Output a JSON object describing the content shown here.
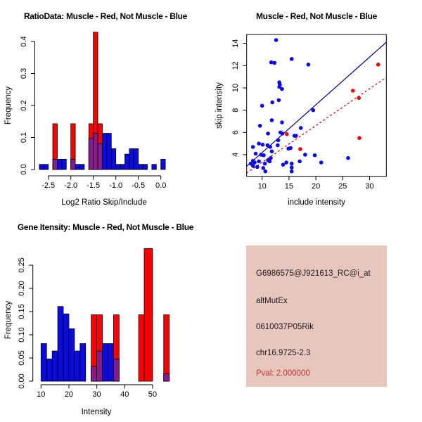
{
  "colors": {
    "hist_blue": "#0b0be0",
    "hist_red": "#fa0000",
    "overlap_purple": "#871b8c",
    "scatter_blue": "#0b0be0",
    "scatter_red": "#ee0000",
    "line_blue": "#00008b",
    "line_red": "#c00000",
    "axis_black": "#000000",
    "info_bg": "#e9c6bd",
    "info_text": "#1a1a1a",
    "pval_red": "#c43128"
  },
  "info_box": {
    "lines": [
      "G6986575@J921613_RC@i_at",
      "altMutEx",
      "0610037P05Rik",
      "chr16.9725-2.3"
    ],
    "pval": "Pval: 2.000000"
  },
  "chart_data": [
    {
      "type": "bar",
      "subtype": "overlaid-histogram",
      "title": "RatioData: Muscle - Red, Not Muscle - Blue",
      "xlabel": "Log2 Ratio Skip/Include",
      "ylabel": "Frequency",
      "xlim": [
        -2.7,
        0.2
      ],
      "ylim": [
        0,
        0.43
      ],
      "grid": false,
      "xticks": [
        -2.5,
        -2.0,
        -1.5,
        -1.0,
        -0.5,
        0.0
      ],
      "xtick_labels": [
        "-2.5",
        "-2.0",
        "-1.5",
        "-1.0",
        "-0.5",
        "0.0"
      ],
      "yticks": [
        0.0,
        0.1,
        0.2,
        0.3,
        0.4
      ],
      "ytick_labels": [
        "0.0",
        "0.1",
        "0.2",
        "0.3",
        "0.4"
      ],
      "bin_width": 0.1,
      "series": [
        {
          "name": "Not Muscle (blue)",
          "color_key": "hist_blue",
          "bars": [
            {
              "x": -2.7,
              "f": 0.016
            },
            {
              "x": -2.6,
              "f": 0.016
            },
            {
              "x": -2.4,
              "f": 0.032
            },
            {
              "x": -2.3,
              "f": 0.032
            },
            {
              "x": -2.2,
              "f": 0.032
            },
            {
              "x": -2.0,
              "f": 0.032
            },
            {
              "x": -1.9,
              "f": 0.016
            },
            {
              "x": -1.8,
              "f": 0.016
            },
            {
              "x": -1.6,
              "f": 0.097
            },
            {
              "x": -1.5,
              "f": 0.113
            },
            {
              "x": -1.4,
              "f": 0.081
            },
            {
              "x": -1.3,
              "f": 0.113
            },
            {
              "x": -1.2,
              "f": 0.113
            },
            {
              "x": -1.1,
              "f": 0.065
            },
            {
              "x": -1.0,
              "f": 0.016
            },
            {
              "x": -0.9,
              "f": 0.016
            },
            {
              "x": -0.8,
              "f": 0.048
            },
            {
              "x": -0.7,
              "f": 0.065
            },
            {
              "x": -0.6,
              "f": 0.065
            },
            {
              "x": -0.5,
              "f": 0.016
            },
            {
              "x": -0.4,
              "f": 0.016
            },
            {
              "x": -0.2,
              "f": 0.016
            },
            {
              "x": 0.0,
              "f": 0.032
            }
          ]
        },
        {
          "name": "Muscle (red)",
          "color_key": "hist_red",
          "bars": [
            {
              "x": -2.4,
              "f": 0.143
            },
            {
              "x": -2.0,
              "f": 0.143
            },
            {
              "x": -1.6,
              "f": 0.143
            },
            {
              "x": -1.5,
              "f": 0.429
            },
            {
              "x": -1.4,
              "f": 0.143
            }
          ]
        },
        {
          "name": "Overlap (purple)",
          "color_key": "overlap_purple",
          "bars": [
            {
              "x": -2.4,
              "f": 0.032
            },
            {
              "x": -2.0,
              "f": 0.032
            },
            {
              "x": -1.6,
              "f": 0.097
            },
            {
              "x": -1.5,
              "f": 0.113
            },
            {
              "x": -1.4,
              "f": 0.081
            }
          ]
        }
      ]
    },
    {
      "type": "scatter",
      "title": "Muscle - Red, Not Muscle - Blue",
      "xlabel": "include intensity",
      "ylabel": "skip intensity",
      "xlim": [
        7.1,
        33.1
      ],
      "ylim": [
        1.95,
        14.8
      ],
      "grid": false,
      "xticks": [
        10,
        15,
        20,
        25,
        30
      ],
      "xtick_labels": [
        "10",
        "15",
        "20",
        "25",
        "30"
      ],
      "yticks": [
        4,
        6,
        8,
        10,
        12,
        14
      ],
      "ytick_labels": [
        "4",
        "6",
        "8",
        "10",
        "12",
        "14"
      ],
      "series": [
        {
          "name": "Not Muscle (blue)",
          "color_key": "scatter_blue",
          "points": [
            [
              12.6,
              14.3
            ],
            [
              11.7,
              12.3
            ],
            [
              12.3,
              12.25
            ],
            [
              15.5,
              12.6
            ],
            [
              18.6,
              12.1
            ],
            [
              13.2,
              10.5
            ],
            [
              13.3,
              10.3
            ],
            [
              13.2,
              10.1
            ],
            [
              13.7,
              9.9
            ],
            [
              11.9,
              8.7
            ],
            [
              13.1,
              8.9
            ],
            [
              10,
              8.4
            ],
            [
              19.5,
              8
            ],
            [
              11.8,
              7.1
            ],
            [
              13.7,
              6.9
            ],
            [
              9.6,
              6.6
            ],
            [
              17.2,
              6.4
            ],
            [
              11.1,
              5.9
            ],
            [
              13.4,
              6
            ],
            [
              13.8,
              5.9
            ],
            [
              16,
              5.7
            ],
            [
              16.3,
              5.7
            ],
            [
              13,
              5.3
            ],
            [
              9.4,
              5
            ],
            [
              10.1,
              4.9
            ],
            [
              11,
              4.85
            ],
            [
              11.5,
              4.7
            ],
            [
              12.9,
              4.85
            ],
            [
              8.3,
              4.7
            ],
            [
              14.9,
              4.55
            ],
            [
              15.3,
              4.6
            ],
            [
              11.8,
              4.3
            ],
            [
              9.8,
              4
            ],
            [
              10.3,
              3.95
            ],
            [
              8.8,
              4.1
            ],
            [
              18,
              4
            ],
            [
              19.8,
              3.95
            ],
            [
              11.6,
              3.7
            ],
            [
              26,
              3.7
            ],
            [
              11.1,
              3.5
            ],
            [
              11.4,
              3.4
            ],
            [
              9.4,
              3.4
            ],
            [
              8.3,
              3.45
            ],
            [
              8.6,
              3.3
            ],
            [
              10.5,
              3.2
            ],
            [
              14.5,
              3.3
            ],
            [
              7.9,
              3.2
            ],
            [
              8.3,
              3
            ],
            [
              13.9,
              3.1
            ],
            [
              15.5,
              3.2
            ],
            [
              17,
              3.4
            ],
            [
              21,
              3.3
            ],
            [
              9.1,
              2.9
            ],
            [
              10.2,
              2.8
            ],
            [
              15.5,
              2.85
            ],
            [
              10.6,
              2.5
            ],
            [
              15.5,
              2.5
            ]
          ]
        },
        {
          "name": "Muscle (red)",
          "color_key": "scatter_red",
          "points": [
            [
              14.6,
              5.85
            ],
            [
              17.1,
              4.5
            ],
            [
              26.9,
              9.75
            ],
            [
              28,
              9.1
            ],
            [
              28.1,
              5.5
            ],
            [
              31.6,
              12.1
            ]
          ]
        }
      ],
      "lines": [
        {
          "name": "blue-fit-line",
          "color_key": "line_blue",
          "x1": 7.1,
          "y1": 2.95,
          "x2": 33.1,
          "y2": 14.1,
          "dashed": false
        },
        {
          "name": "red-fit-line",
          "color_key": "line_red",
          "x1": 7.1,
          "y1": 2.35,
          "x2": 33.1,
          "y2": 10.95,
          "dashed": true
        }
      ]
    },
    {
      "type": "bar",
      "subtype": "overlaid-histogram",
      "title": "Gene Itensity: Muscle - Red, Not Muscle - Blue",
      "xlabel": "Intensity",
      "ylabel": "Frequency",
      "xlim": [
        10,
        57
      ],
      "ylim": [
        0,
        0.29
      ],
      "grid": false,
      "xticks": [
        10,
        20,
        30,
        40,
        50
      ],
      "xtick_labels": [
        "10",
        "20",
        "30",
        "40",
        "50"
      ],
      "yticks": [
        0.0,
        0.05,
        0.1,
        0.15,
        0.2,
        0.25
      ],
      "ytick_labels": [
        "0.00",
        "0.05",
        "0.10",
        "0.15",
        "0.20",
        "0.25"
      ],
      "bin_width": 2,
      "series": [
        {
          "name": "Not Muscle (blue)",
          "color_key": "hist_blue",
          "bars": [
            {
              "x": 10,
              "f": 0.081
            },
            {
              "x": 12,
              "f": 0.048
            },
            {
              "x": 14,
              "f": 0.065
            },
            {
              "x": 16,
              "f": 0.161
            },
            {
              "x": 18,
              "f": 0.145
            },
            {
              "x": 20,
              "f": 0.113
            },
            {
              "x": 22,
              "f": 0.065
            },
            {
              "x": 24,
              "f": 0.081
            },
            {
              "x": 28,
              "f": 0.032
            },
            {
              "x": 30,
              "f": 0.065
            },
            {
              "x": 32,
              "f": 0.081
            },
            {
              "x": 34,
              "f": 0.081
            },
            {
              "x": 36,
              "f": 0.048
            },
            {
              "x": 54,
              "f": 0.016
            }
          ]
        },
        {
          "name": "Muscle (red)",
          "color_key": "hist_red",
          "bars": [
            {
              "x": 28,
              "f": 0.143
            },
            {
              "x": 30,
              "f": 0.143
            },
            {
              "x": 36,
              "f": 0.143
            },
            {
              "x": 45,
              "f": 0.143
            },
            {
              "x": 47,
              "w": 3,
              "f": 0.286
            },
            {
              "x": 54,
              "f": 0.143
            }
          ]
        },
        {
          "name": "Overlap (purple)",
          "color_key": "overlap_purple",
          "bars": [
            {
              "x": 28,
              "f": 0.032
            },
            {
              "x": 30,
              "f": 0.065
            },
            {
              "x": 36,
              "f": 0.048
            },
            {
              "x": 54,
              "f": 0.016
            }
          ]
        }
      ]
    }
  ]
}
